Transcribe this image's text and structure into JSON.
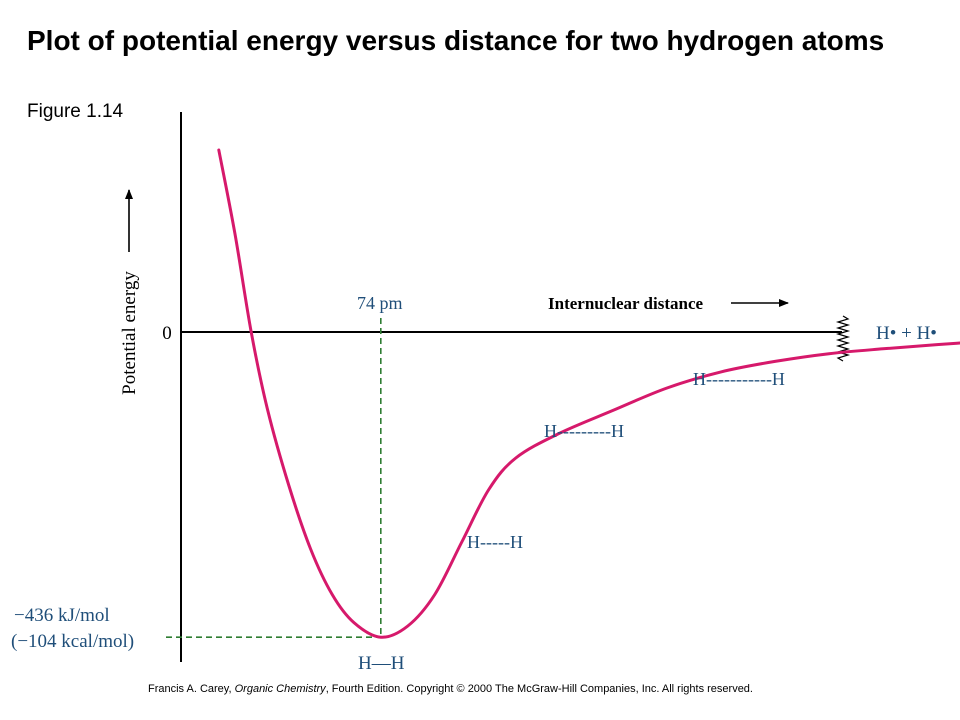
{
  "header": {
    "title": "Plot of potential energy versus distance for two hydrogen atoms",
    "subtitle": "Figure 1.14"
  },
  "colors": {
    "curve": "#d6196b",
    "guide": "#2e7d32",
    "label": "#1f4e79",
    "axis": "#000000"
  },
  "chart_data": {
    "type": "line",
    "title": "Plot of potential energy versus distance for two hydrogen atoms",
    "ylabel": "Potential energy",
    "xlabel": "Internuclear distance",
    "y_zero_label": "0",
    "minimum": {
      "x_label": "74 pm",
      "x_pm": 74,
      "energy_label_line1": "−436 kJ/mol",
      "energy_label_line2": "(−104 kcal/mol)",
      "energy_kj_mol": -436,
      "energy_kcal_mol": -104
    },
    "dissociation_label": "H• + H•",
    "configurations": [
      {
        "label": "H—H",
        "x_pm": 74,
        "energy_kj_mol": -436
      },
      {
        "label": "H-----H",
        "x_pm": 104,
        "energy_kj_mol": -298
      },
      {
        "label": "H---------H",
        "x_pm": 155,
        "energy_kj_mol": -125
      },
      {
        "label": "H-----------H",
        "x_pm": 235,
        "energy_kj_mol": -34
      }
    ],
    "series": [
      {
        "points": [
          {
            "x": 14,
            "y": 260
          },
          {
            "x": 20,
            "y": 140
          },
          {
            "x": 26,
            "y": 0
          },
          {
            "x": 32,
            "y": -110
          },
          {
            "x": 40,
            "y": -220
          },
          {
            "x": 48,
            "y": -310
          },
          {
            "x": 56,
            "y": -375
          },
          {
            "x": 64,
            "y": -415
          },
          {
            "x": 74,
            "y": -436
          },
          {
            "x": 84,
            "y": -420
          },
          {
            "x": 94,
            "y": -375
          },
          {
            "x": 104,
            "y": -300
          },
          {
            "x": 114,
            "y": -225
          },
          {
            "x": 124,
            "y": -180
          },
          {
            "x": 140,
            "y": -145
          },
          {
            "x": 160,
            "y": -112
          },
          {
            "x": 180,
            "y": -80
          },
          {
            "x": 200,
            "y": -57
          },
          {
            "x": 220,
            "y": -42
          },
          {
            "x": 240,
            "y": -31
          },
          {
            "x": 260,
            "y": -24
          },
          {
            "x": 280,
            "y": -18
          },
          {
            "x": 300,
            "y": -13
          }
        ]
      }
    ]
  },
  "footer": {
    "before": "Francis A. Carey, ",
    "book": "Organic Chemistry",
    "after": ", Fourth Edition. Copyright © 2000 The McGraw-Hill Companies, Inc. All rights reserved."
  }
}
